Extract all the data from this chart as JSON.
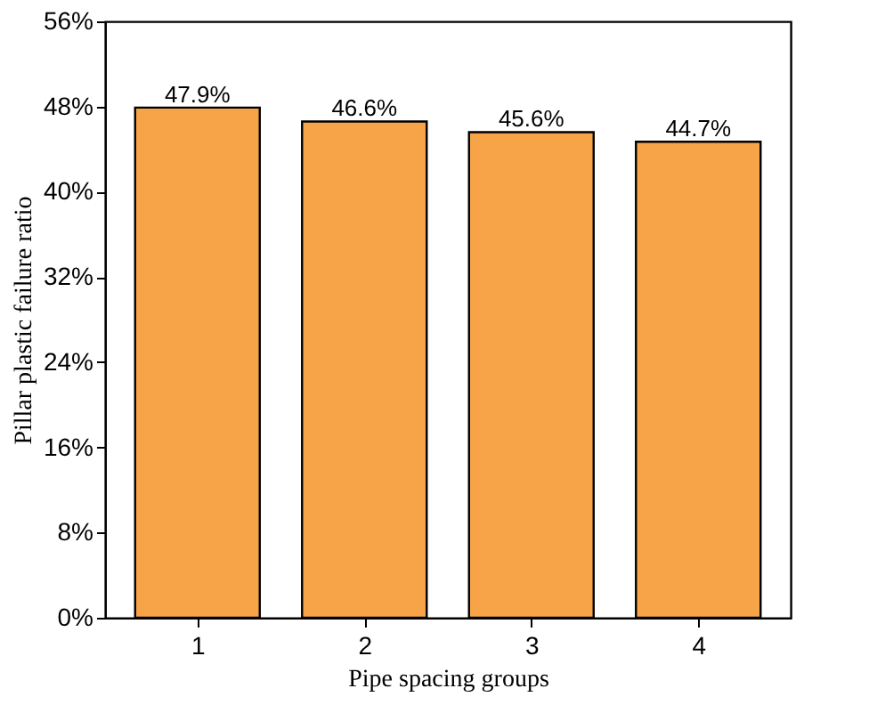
{
  "chart_data": {
    "type": "bar",
    "xlabel": "Pipe spacing groups",
    "ylabel": "Pillar plastic failure ratio",
    "categories": [
      "1",
      "2",
      "3",
      "4"
    ],
    "values": [
      47.9,
      46.6,
      45.6,
      44.7
    ],
    "value_labels": [
      "47.9%",
      "46.6%",
      "45.6%",
      "44.7%"
    ],
    "color": "#f7a348",
    "ylim": [
      0,
      56
    ],
    "yticks": [
      {
        "value": 0,
        "label": "0%"
      },
      {
        "value": 8,
        "label": "8%"
      },
      {
        "value": 16,
        "label": "16%"
      },
      {
        "value": 24,
        "label": "24%"
      },
      {
        "value": 32,
        "label": "32%"
      },
      {
        "value": 40,
        "label": "40%"
      },
      {
        "value": 48,
        "label": "48%"
      },
      {
        "value": 56,
        "label": "56%"
      }
    ],
    "grid": false
  }
}
